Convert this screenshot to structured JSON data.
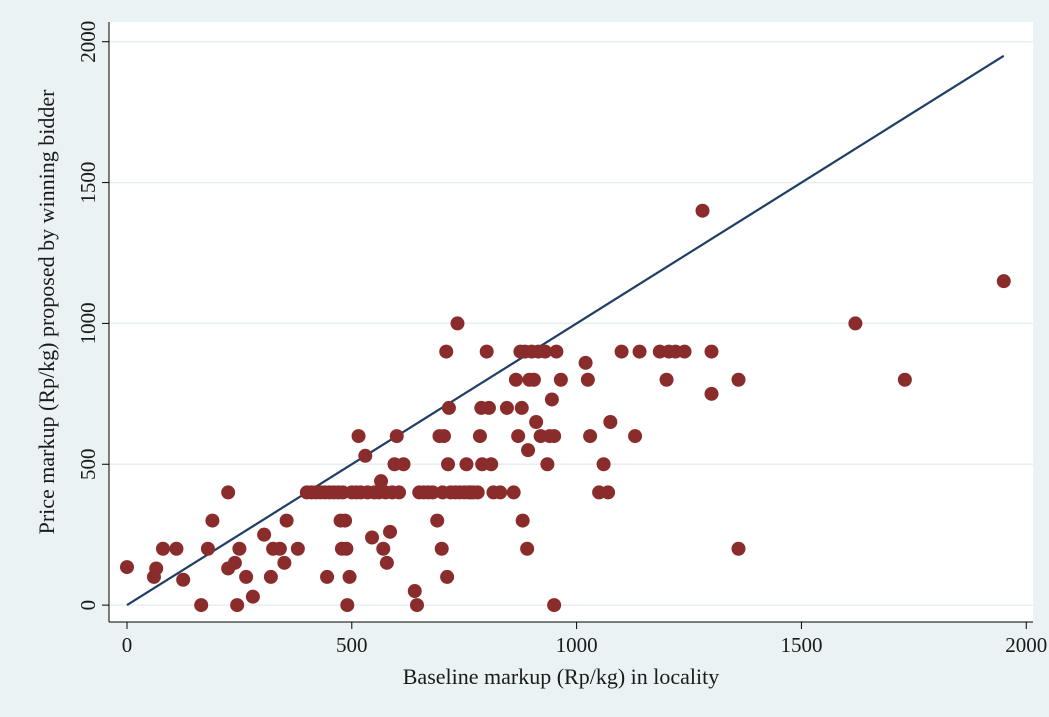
{
  "chart_data": {
    "type": "scatter",
    "title": "",
    "xlabel": "Baseline markup (Rp/kg) in locality",
    "ylabel": "Price markup (Rp/kg) proposed by winning bidder",
    "xlim": [
      -40,
      2015
    ],
    "ylim": [
      -60,
      2070
    ],
    "xticks": [
      0,
      500,
      1000,
      1500,
      2000
    ],
    "yticks": [
      0,
      500,
      1000,
      1500,
      2000
    ],
    "grid": "horizontal",
    "legend": "none",
    "colors": {
      "background": "#eaf2f3",
      "plot_background": "#ffffff",
      "gridline": "#e6eef0",
      "marker": "#8b2c2c",
      "line": "#1f3f66",
      "axis": "#000000"
    },
    "reference_line": {
      "x": [
        0,
        1950
      ],
      "y": [
        0,
        1950
      ]
    },
    "series": [
      {
        "points": [
          [
            0,
            135
          ],
          [
            60,
            100
          ],
          [
            65,
            130
          ],
          [
            80,
            200
          ],
          [
            110,
            200
          ],
          [
            125,
            90
          ],
          [
            165,
            0
          ],
          [
            180,
            200
          ],
          [
            190,
            300
          ],
          [
            225,
            400
          ],
          [
            225,
            130
          ],
          [
            240,
            150
          ],
          [
            245,
            0
          ],
          [
            250,
            200
          ],
          [
            265,
            100
          ],
          [
            280,
            30
          ],
          [
            305,
            250
          ],
          [
            320,
            100
          ],
          [
            325,
            200
          ],
          [
            340,
            200
          ],
          [
            350,
            150
          ],
          [
            355,
            300
          ],
          [
            380,
            200
          ],
          [
            400,
            400
          ],
          [
            410,
            400
          ],
          [
            420,
            400
          ],
          [
            430,
            400
          ],
          [
            440,
            400
          ],
          [
            445,
            100
          ],
          [
            450,
            400
          ],
          [
            460,
            400
          ],
          [
            470,
            400
          ],
          [
            475,
            300
          ],
          [
            478,
            200
          ],
          [
            480,
            400
          ],
          [
            485,
            300
          ],
          [
            488,
            200
          ],
          [
            490,
            0
          ],
          [
            495,
            100
          ],
          [
            500,
            400
          ],
          [
            510,
            400
          ],
          [
            515,
            600
          ],
          [
            520,
            400
          ],
          [
            530,
            530
          ],
          [
            535,
            400
          ],
          [
            545,
            240
          ],
          [
            550,
            400
          ],
          [
            560,
            400
          ],
          [
            565,
            440
          ],
          [
            570,
            200
          ],
          [
            575,
            400
          ],
          [
            578,
            150
          ],
          [
            585,
            260
          ],
          [
            590,
            400
          ],
          [
            595,
            500
          ],
          [
            600,
            600
          ],
          [
            605,
            400
          ],
          [
            615,
            500
          ],
          [
            640,
            50
          ],
          [
            645,
            0
          ],
          [
            650,
            400
          ],
          [
            660,
            400
          ],
          [
            670,
            400
          ],
          [
            680,
            400
          ],
          [
            690,
            300
          ],
          [
            695,
            600
          ],
          [
            700,
            200
          ],
          [
            702,
            400
          ],
          [
            705,
            600
          ],
          [
            710,
            900
          ],
          [
            712,
            100
          ],
          [
            714,
            500
          ],
          [
            716,
            700
          ],
          [
            720,
            400
          ],
          [
            730,
            400
          ],
          [
            735,
            1000
          ],
          [
            740,
            400
          ],
          [
            750,
            400
          ],
          [
            755,
            500
          ],
          [
            760,
            400
          ],
          [
            765,
            400
          ],
          [
            770,
            400
          ],
          [
            780,
            400
          ],
          [
            785,
            600
          ],
          [
            788,
            700
          ],
          [
            790,
            500
          ],
          [
            800,
            900
          ],
          [
            805,
            700
          ],
          [
            810,
            500
          ],
          [
            815,
            400
          ],
          [
            830,
            400
          ],
          [
            845,
            700
          ],
          [
            860,
            400
          ],
          [
            865,
            800
          ],
          [
            870,
            600
          ],
          [
            875,
            900
          ],
          [
            878,
            700
          ],
          [
            880,
            300
          ],
          [
            885,
            900
          ],
          [
            890,
            200
          ],
          [
            892,
            550
          ],
          [
            895,
            800
          ],
          [
            900,
            900
          ],
          [
            905,
            800
          ],
          [
            910,
            650
          ],
          [
            915,
            900
          ],
          [
            920,
            600
          ],
          [
            930,
            900
          ],
          [
            935,
            500
          ],
          [
            940,
            600
          ],
          [
            945,
            730
          ],
          [
            950,
            0
          ],
          [
            950,
            600
          ],
          [
            955,
            900
          ],
          [
            965,
            800
          ],
          [
            1020,
            860
          ],
          [
            1025,
            800
          ],
          [
            1030,
            600
          ],
          [
            1050,
            400
          ],
          [
            1060,
            500
          ],
          [
            1070,
            400
          ],
          [
            1075,
            650
          ],
          [
            1100,
            900
          ],
          [
            1130,
            600
          ],
          [
            1140,
            900
          ],
          [
            1185,
            900
          ],
          [
            1200,
            800
          ],
          [
            1205,
            900
          ],
          [
            1220,
            900
          ],
          [
            1240,
            900
          ],
          [
            1280,
            1400
          ],
          [
            1300,
            750
          ],
          [
            1300,
            900
          ],
          [
            1360,
            800
          ],
          [
            1360,
            200
          ],
          [
            1620,
            1000
          ],
          [
            1730,
            800
          ],
          [
            1950,
            1150
          ]
        ]
      }
    ]
  }
}
